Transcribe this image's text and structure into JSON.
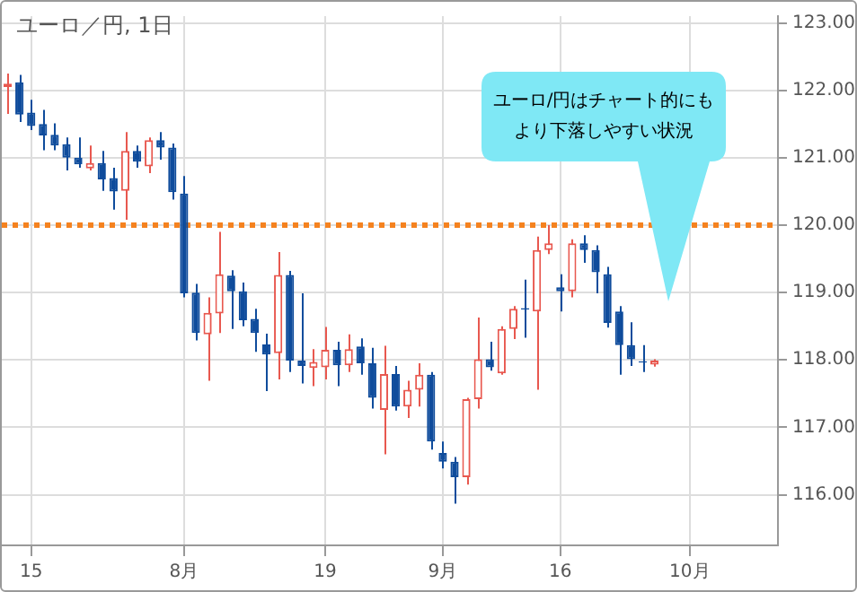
{
  "chart_data": {
    "type": "candlestick",
    "title": "ユーロ／円, 1日",
    "categories": [
      null,
      null,
      "15",
      null,
      null,
      null,
      null,
      null,
      null,
      null,
      null,
      null,
      null,
      null,
      null,
      "8月",
      null,
      null,
      null,
      null,
      null,
      null,
      null,
      null,
      null,
      null,
      null,
      "19",
      null,
      null,
      null,
      null,
      null,
      null,
      null,
      null,
      null,
      "9月",
      null,
      null,
      null,
      null,
      null,
      null,
      null,
      null,
      null,
      "16",
      null,
      null,
      null,
      null,
      null,
      null,
      null,
      null,
      null,
      null,
      "10月",
      null,
      null,
      null,
      null,
      null,
      null,
      null
    ],
    "ohlc": [
      [
        122.05,
        122.25,
        121.65,
        122.1
      ],
      [
        122.12,
        122.23,
        121.53,
        121.64
      ],
      [
        121.67,
        121.86,
        121.41,
        121.47
      ],
      [
        121.5,
        121.71,
        121.11,
        121.33
      ],
      [
        121.34,
        121.51,
        121.11,
        121.18
      ],
      [
        121.2,
        121.3,
        120.81,
        121.0
      ],
      [
        121.0,
        121.3,
        120.85,
        120.9
      ],
      [
        120.84,
        121.18,
        120.81,
        120.92
      ],
      [
        120.92,
        121.1,
        120.51,
        120.68
      ],
      [
        120.7,
        120.85,
        120.23,
        120.5
      ],
      [
        120.51,
        121.38,
        120.08,
        121.1
      ],
      [
        121.1,
        121.18,
        120.85,
        120.94
      ],
      [
        120.87,
        121.3,
        120.77,
        121.26
      ],
      [
        121.26,
        121.38,
        120.97,
        121.15
      ],
      [
        121.15,
        121.21,
        120.38,
        120.49
      ],
      [
        120.47,
        120.73,
        118.93,
        118.99
      ],
      [
        119.0,
        119.13,
        118.29,
        118.4
      ],
      [
        118.38,
        118.93,
        117.69,
        118.7
      ],
      [
        118.69,
        119.9,
        118.4,
        119.27
      ],
      [
        119.25,
        119.33,
        118.46,
        119.02
      ],
      [
        119.02,
        119.15,
        118.5,
        118.59
      ],
      [
        118.61,
        118.76,
        118.12,
        118.4
      ],
      [
        118.23,
        118.39,
        117.54,
        118.08
      ],
      [
        118.1,
        119.6,
        117.71,
        119.26
      ],
      [
        119.26,
        119.32,
        117.82,
        117.99
      ],
      [
        117.99,
        118.99,
        117.65,
        117.91
      ],
      [
        117.88,
        118.16,
        117.61,
        117.97
      ],
      [
        117.89,
        118.49,
        117.71,
        118.15
      ],
      [
        118.15,
        118.27,
        117.61,
        117.92
      ],
      [
        117.92,
        118.38,
        117.82,
        118.16
      ],
      [
        118.2,
        118.32,
        117.78,
        117.95
      ],
      [
        117.95,
        118.18,
        117.28,
        117.44
      ],
      [
        117.26,
        118.21,
        116.6,
        117.79
      ],
      [
        117.79,
        117.91,
        117.25,
        117.31
      ],
      [
        117.31,
        117.69,
        117.14,
        117.56
      ],
      [
        117.56,
        117.95,
        117.31,
        117.78
      ],
      [
        117.78,
        117.82,
        116.67,
        116.79
      ],
      [
        116.62,
        116.79,
        116.39,
        116.49
      ],
      [
        116.49,
        116.56,
        115.87,
        116.26
      ],
      [
        116.26,
        117.44,
        116.15,
        117.42
      ],
      [
        117.42,
        118.63,
        117.28,
        118.01
      ],
      [
        118.01,
        118.27,
        117.84,
        117.89
      ],
      [
        117.8,
        118.5,
        117.78,
        118.46
      ],
      [
        118.46,
        118.8,
        118.31,
        118.76
      ],
      [
        118.77,
        119.19,
        118.33,
        118.75
      ],
      [
        118.72,
        119.83,
        117.56,
        119.63
      ],
      [
        119.63,
        120.0,
        119.57,
        119.73
      ],
      [
        119.08,
        119.27,
        118.72,
        119.02
      ],
      [
        119.02,
        119.79,
        118.93,
        119.73
      ],
      [
        119.73,
        119.85,
        119.44,
        119.63
      ],
      [
        119.63,
        119.7,
        118.99,
        119.3
      ],
      [
        119.27,
        119.38,
        118.48,
        118.55
      ],
      [
        118.72,
        118.8,
        117.78,
        118.22
      ],
      [
        118.22,
        118.56,
        117.91,
        118.01
      ],
      [
        117.98,
        118.22,
        117.82,
        117.96
      ],
      [
        117.93,
        118.01,
        117.9,
        117.99
      ],
      null,
      null,
      null,
      null,
      null,
      null,
      null,
      null,
      null,
      null
    ],
    "colors": [
      "#e8584f",
      "#0f4c9c",
      "#0f4c9c",
      "#0f4c9c",
      "#0f4c9c",
      "#0f4c9c",
      "#0f4c9c",
      "#e8584f",
      "#0f4c9c",
      "#0f4c9c",
      "#e8584f",
      "#0f4c9c",
      "#e8584f",
      "#0f4c9c",
      "#0f4c9c",
      "#0f4c9c",
      "#0f4c9c",
      "#e8584f",
      "#e8584f",
      "#0f4c9c",
      "#0f4c9c",
      "#0f4c9c",
      "#0f4c9c",
      "#e8584f",
      "#0f4c9c",
      "#0f4c9c",
      "#e8584f",
      "#e8584f",
      "#0f4c9c",
      "#e8584f",
      "#0f4c9c",
      "#0f4c9c",
      "#e8584f",
      "#0f4c9c",
      "#e8584f",
      "#e8584f",
      "#0f4c9c",
      "#0f4c9c",
      "#0f4c9c",
      "#e8584f",
      "#e8584f",
      "#0f4c9c",
      "#e8584f",
      "#e8584f",
      "#0f4c9c",
      "#e8584f",
      "#e8584f",
      "#0f4c9c",
      "#e8584f",
      "#0f4c9c",
      "#0f4c9c",
      "#0f4c9c",
      "#0f4c9c",
      "#0f4c9c",
      "#0f4c9c",
      "#e8584f",
      null,
      null,
      null,
      null,
      null,
      null,
      null,
      null,
      null,
      null
    ],
    "ylim": [
      115.25,
      123.1
    ],
    "yticks": [
      {
        "value": 116,
        "label": "116.00"
      },
      {
        "value": 117,
        "label": "117.00"
      },
      {
        "value": 118,
        "label": "118.00"
      },
      {
        "value": 119,
        "label": "119.00"
      },
      {
        "value": 120,
        "label": "120.00"
      },
      {
        "value": 121,
        "label": "121.00"
      },
      {
        "value": 122,
        "label": "122.00"
      },
      {
        "value": 123,
        "label": "123.00"
      }
    ],
    "ref_lines": [
      {
        "axis": "y",
        "value": 120,
        "color": "#f5821f",
        "line_style": "dotted"
      }
    ],
    "annotations": [
      "ユーロ/円はチャート的にもより下落しやすい状況"
    ],
    "grid": true,
    "legend": false
  }
}
